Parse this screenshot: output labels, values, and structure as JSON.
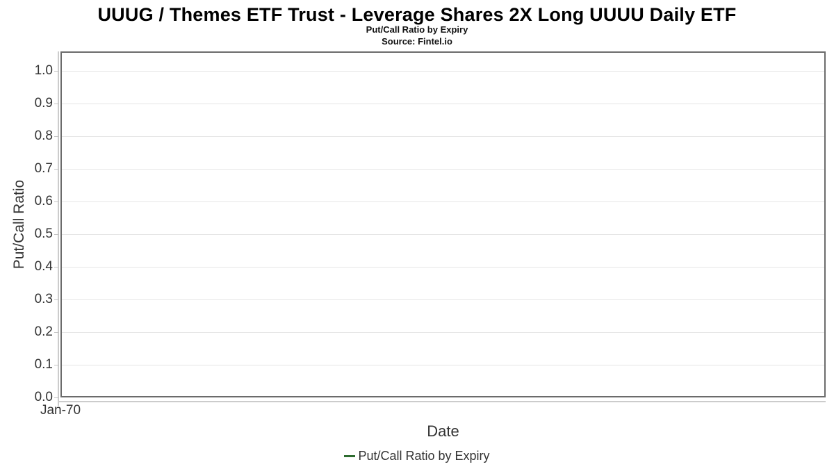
{
  "header": {
    "title": "UUUG / Themes ETF Trust - Leverage Shares 2X Long UUUU Daily ETF",
    "subtitle": "Put/Call Ratio by Expiry",
    "source": "Source: Fintel.io"
  },
  "legend": {
    "position": "bottom-center",
    "items": [
      {
        "label": "Put/Call Ratio by Expiry",
        "marker": "line",
        "color": "#2e6c30"
      }
    ]
  },
  "colors": {
    "plot_border": "#6b6b6b",
    "gridline": "#e6e6e6",
    "axis_line": "#cccccc",
    "tick_text": "#333333",
    "title_text": "#000000",
    "series_green": "#2e6c30"
  },
  "chart_data": {
    "type": "line",
    "title": "UUUG / Themes ETF Trust - Leverage Shares 2X Long UUUU Daily ETF",
    "subtitle": "Put/Call Ratio by Expiry",
    "source": "Source: Fintel.io",
    "xlabel": "Date",
    "ylabel": "Put/Call Ratio",
    "y_tick_labels": [
      "0.0",
      "0.1",
      "0.2",
      "0.3",
      "0.4",
      "0.5",
      "0.6",
      "0.7",
      "0.8",
      "0.9",
      "1.0"
    ],
    "y_tick_values": [
      0.0,
      0.1,
      0.2,
      0.3,
      0.4,
      0.5,
      0.6,
      0.7,
      0.8,
      0.9,
      1.0
    ],
    "x_tick_labels": [
      "Jan-70"
    ],
    "ylim": [
      0,
      1.06
    ],
    "grid": "horizontal",
    "legend_position": "bottom-center",
    "series": [
      {
        "name": "Put/Call Ratio by Expiry",
        "color": "#2e6c30",
        "x": [],
        "values": []
      }
    ]
  }
}
